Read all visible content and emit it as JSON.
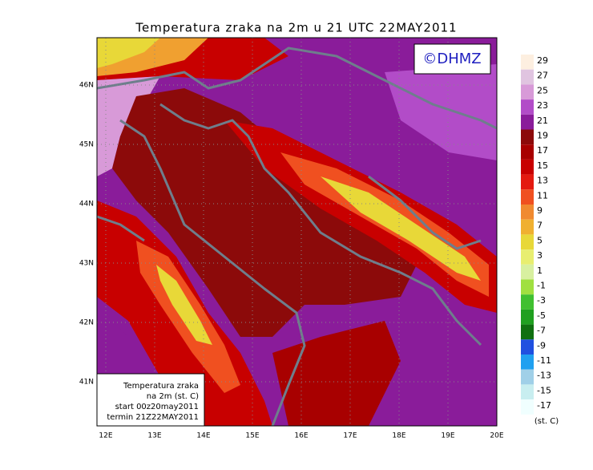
{
  "title": "Temperatura zraka na 2m u 21 UTC 22MAY2011",
  "copyright": "©DHMZ",
  "map": {
    "lon_labels": [
      "12E",
      "13E",
      "14E",
      "15E",
      "16E",
      "17E",
      "18E",
      "19E",
      "20E"
    ],
    "lat_labels": [
      "46N",
      "45N",
      "44N",
      "43N",
      "42N",
      "41N"
    ]
  },
  "info_box": [
    "Temperatura zraka",
    "na 2m (st. C)",
    "start 00z20may2011",
    "termin 21Z22MAY2011"
  ],
  "colorbar": {
    "levels": [
      29,
      27,
      25,
      23,
      21,
      19,
      17,
      15,
      13,
      11,
      9,
      7,
      5,
      3,
      1,
      -1,
      -3,
      -5,
      -7,
      -9,
      -11,
      -13,
      -15,
      -17
    ],
    "colors": [
      "#fdefe0",
      "#e0c4e0",
      "#d89ad8",
      "#b24cc8",
      "#8a1c9a",
      "#8c0a0a",
      "#a80000",
      "#c80000",
      "#e41a10",
      "#f05020",
      "#f08a30",
      "#f0b030",
      "#e8d838",
      "#e8ee70",
      "#d8f0a0",
      "#a0e040",
      "#40c030",
      "#20a020",
      "#107010",
      "#2050e0",
      "#20a0f0",
      "#a0d0e8",
      "#c8eef0",
      "#f0ffff"
    ],
    "unit": "(st. C)"
  }
}
